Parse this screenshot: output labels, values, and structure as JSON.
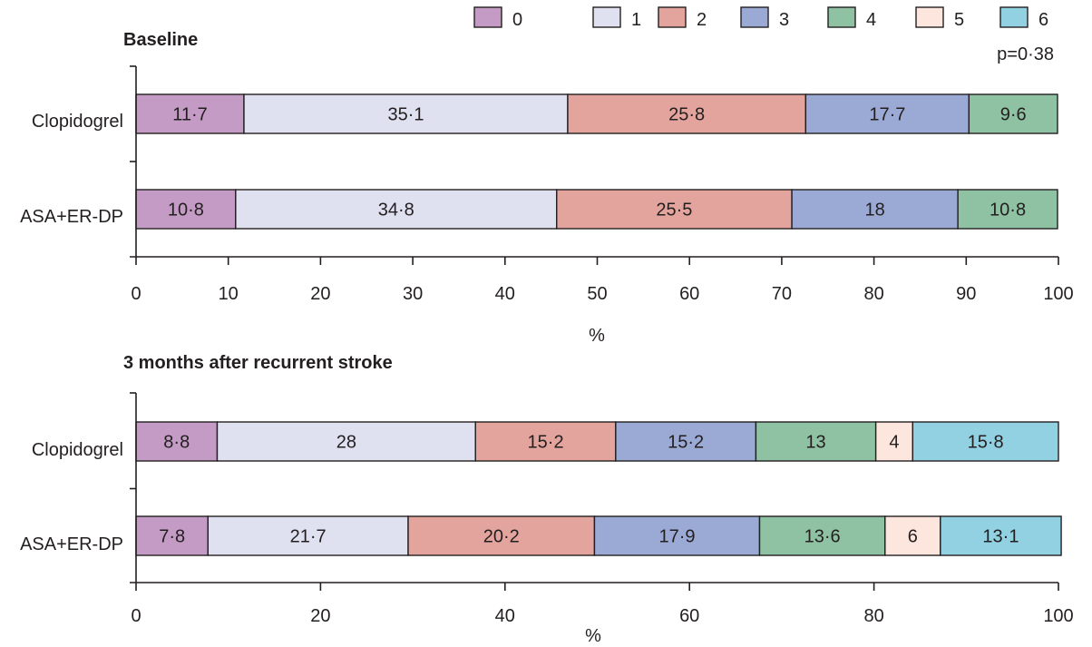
{
  "chart_data": {
    "type": "bar",
    "orientation": "horizontal",
    "stacked": true,
    "legend": {
      "placement": "top-right",
      "entries": [
        {
          "label": "0",
          "color": "#c39bc4"
        },
        {
          "label": "1",
          "color": "#dfe0f0"
        },
        {
          "label": "2",
          "color": "#e2a49c"
        },
        {
          "label": "3",
          "color": "#9baad5"
        },
        {
          "label": "4",
          "color": "#8fc2a3"
        },
        {
          "label": "5",
          "color": "#fde6dd"
        },
        {
          "label": "6",
          "color": "#92d1e2"
        }
      ]
    },
    "xlabel": "%",
    "grid": false,
    "panels": [
      {
        "title": "Baseline",
        "annotation": "p=0·38",
        "xlim": [
          0,
          100
        ],
        "xticks": [
          0,
          10,
          20,
          30,
          40,
          50,
          60,
          70,
          80,
          90,
          100
        ],
        "categories": [
          "Clopidogrel",
          "ASA+ER-DP"
        ],
        "rows": [
          {
            "values": [
              11.7,
              35.1,
              25.8,
              17.7,
              9.6,
              0,
              0
            ],
            "labels": [
              "11·7",
              "35·1",
              "25·8",
              "17·7",
              "9·6",
              "",
              ""
            ]
          },
          {
            "values": [
              10.8,
              34.8,
              25.5,
              18.0,
              10.8,
              0,
              0
            ],
            "labels": [
              "10·8",
              "34·8",
              "25·5",
              "18",
              "10·8",
              "",
              ""
            ]
          }
        ]
      },
      {
        "title": "3 months after recurrent stroke",
        "annotation": "",
        "xlim": [
          0,
          100
        ],
        "xticks": [
          0,
          20,
          40,
          60,
          80,
          100
        ],
        "categories": [
          "Clopidogrel",
          "ASA+ER-DP"
        ],
        "rows": [
          {
            "values": [
              8.8,
              28.0,
              15.2,
              15.2,
              13.0,
              4.0,
              15.8
            ],
            "labels": [
              "8·8",
              "28",
              "15·2",
              "15·2",
              "13",
              "4",
              "15·8"
            ]
          },
          {
            "values": [
              7.8,
              21.7,
              20.2,
              17.9,
              13.6,
              6.0,
              13.1
            ],
            "labels": [
              "7·8",
              "21·7",
              "20·2",
              "17·9",
              "13·6",
              "6",
              "13·1"
            ]
          }
        ]
      }
    ]
  }
}
